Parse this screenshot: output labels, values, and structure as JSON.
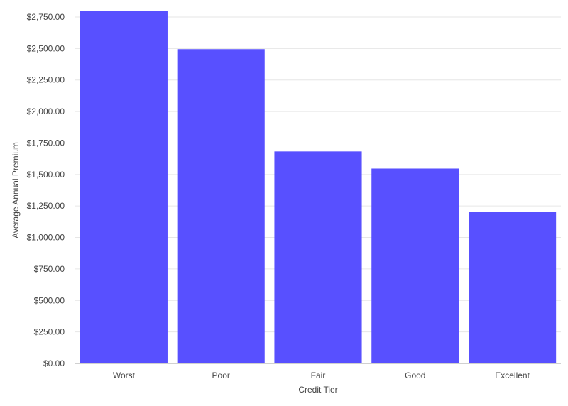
{
  "chart_data": {
    "type": "bar",
    "categories": [
      "Worst",
      "Poor",
      "Fair",
      "Good",
      "Excellent"
    ],
    "series": [
      {
        "values": [
          2800,
          2495,
          1683,
          1547,
          1203
        ]
      }
    ],
    "title": "",
    "xlabel": "Credit Tier",
    "ylabel": "Average Annual Premium",
    "ylim": [
      0,
      2750
    ],
    "yticks": [
      0,
      250,
      500,
      750,
      1000,
      1250,
      1500,
      1750,
      2000,
      2250,
      2500,
      2750
    ],
    "ytick_labels": [
      "$0.00",
      "$250.00",
      "$500.00",
      "$750.00",
      "$1,000.00",
      "$1,250.00",
      "$1,500.00",
      "$1,750.00",
      "$2,000.00",
      "$2,250.00",
      "$2,500.00",
      "$2,750.00"
    ],
    "grid": true,
    "legend": "none",
    "bar_color": "#5850ff"
  }
}
